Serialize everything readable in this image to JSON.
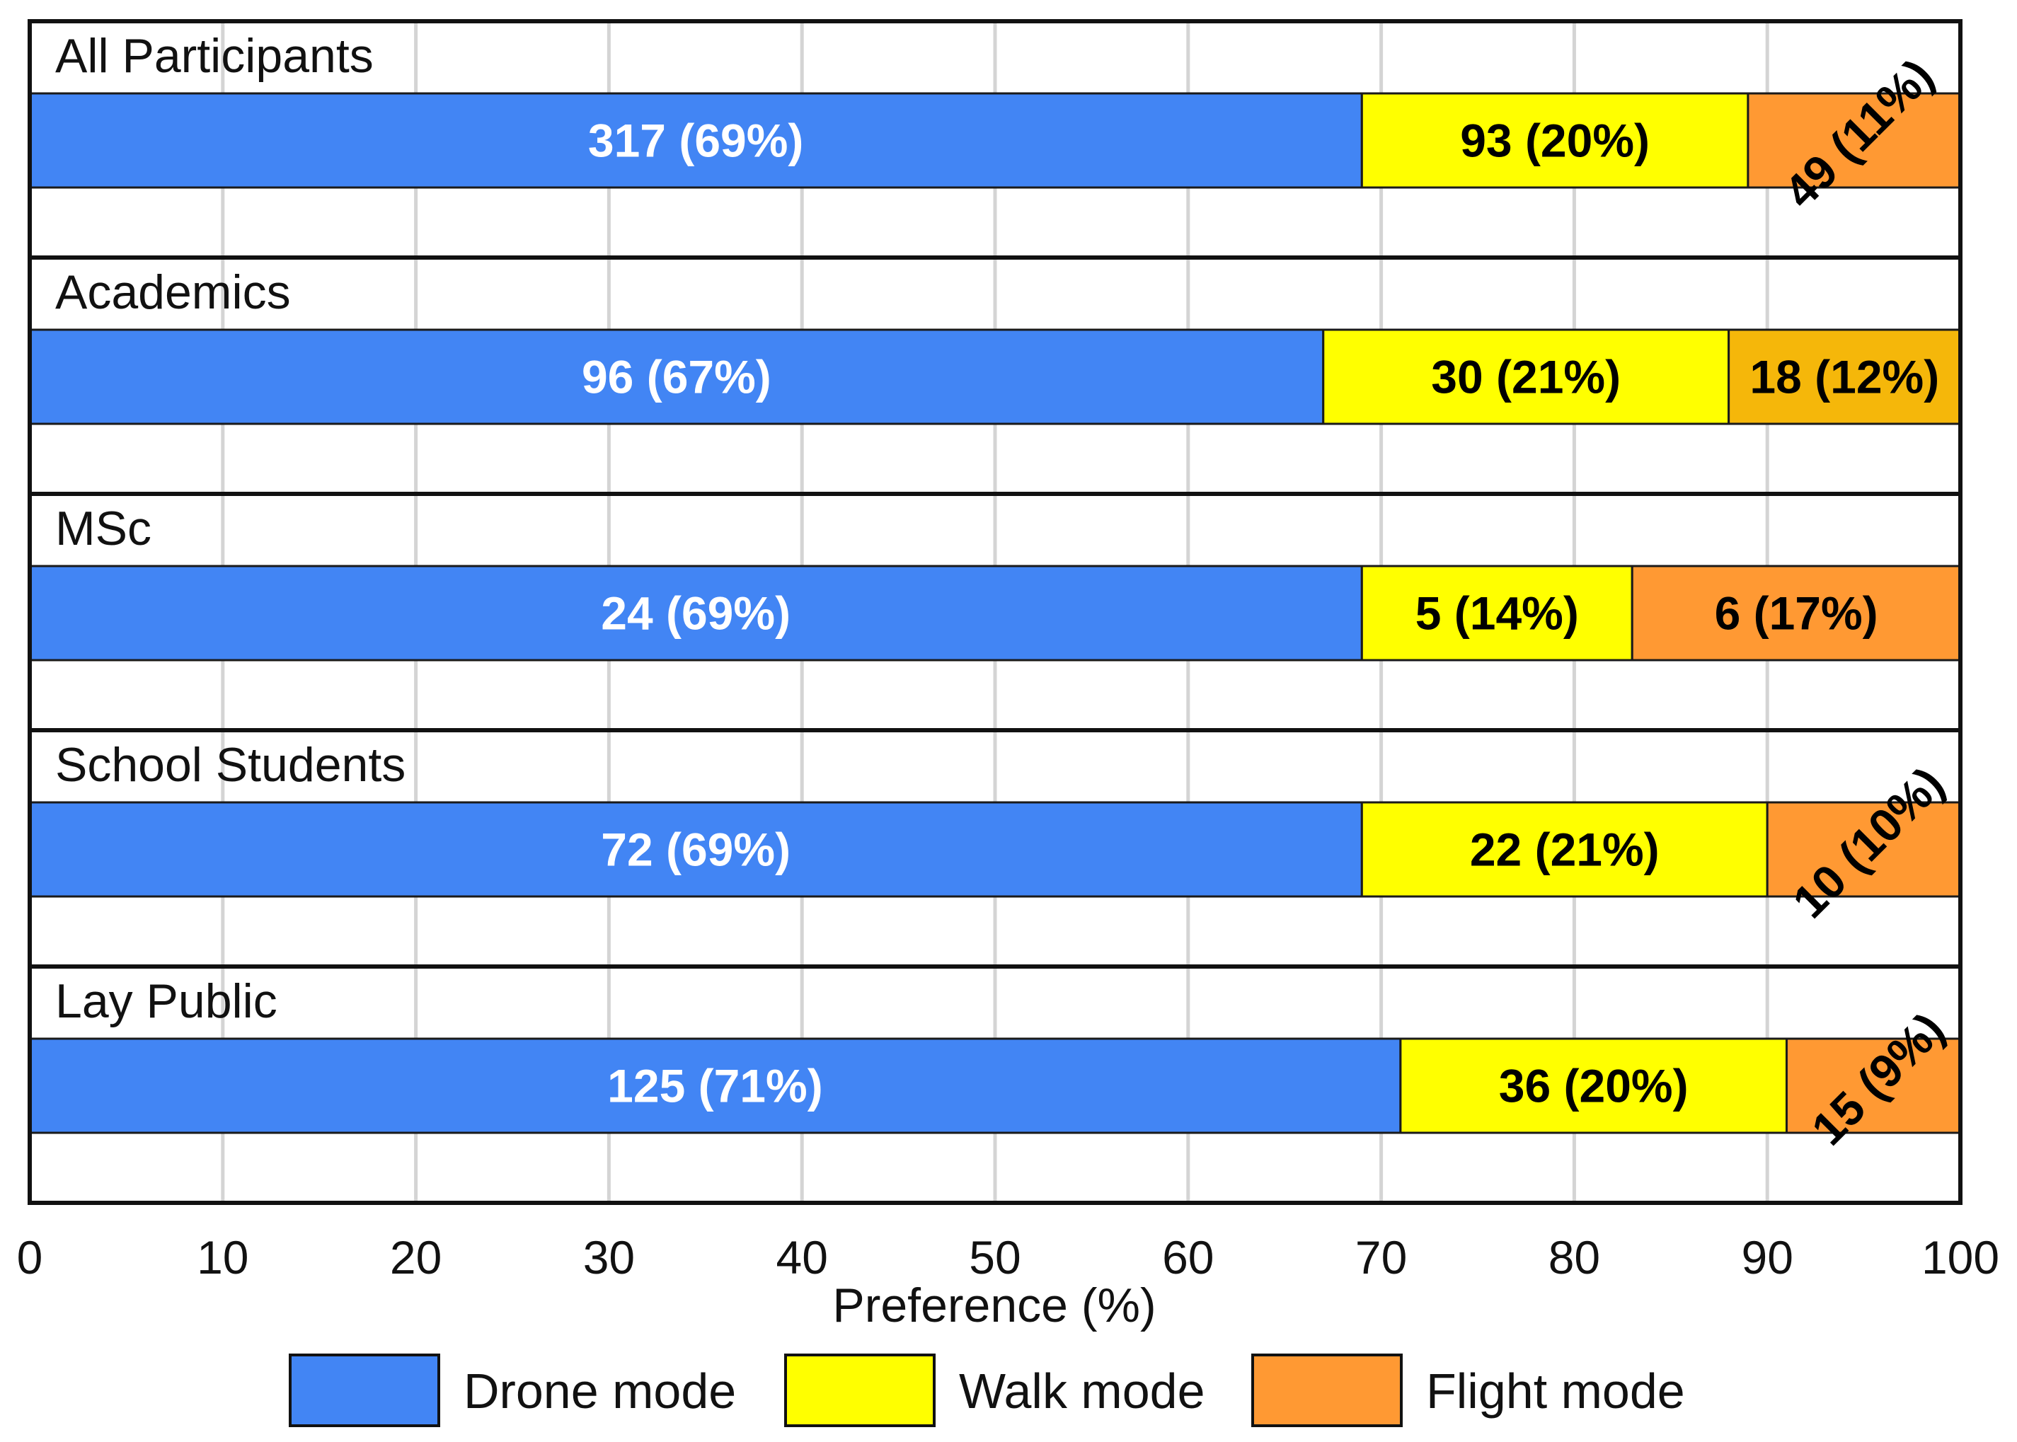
{
  "chart_data": {
    "type": "bar",
    "orientation": "horizontal",
    "stacked": true,
    "normalized_percent": true,
    "xlabel": "Preference (%)",
    "xlim": [
      0,
      100
    ],
    "xticks": [
      "0",
      "10",
      "20",
      "30",
      "40",
      "50",
      "60",
      "70",
      "80",
      "90",
      "100"
    ],
    "grid": true,
    "legend_position": "bottom",
    "series": [
      {
        "name": "Drone mode",
        "color": "#4285f4"
      },
      {
        "name": "Walk mode",
        "color": "#ffff00"
      },
      {
        "name": "Flight mode",
        "color": "#ff9933"
      }
    ],
    "categories": [
      {
        "name": "All Participants",
        "counts": [
          317,
          93,
          49
        ],
        "percents": [
          69,
          20,
          11
        ],
        "labels": [
          "317 (69%)",
          "93 (20%)",
          "49 (11%)"
        ],
        "flight_color": "#ff9933",
        "flight_label_rotated": true
      },
      {
        "name": "Academics",
        "counts": [
          96,
          30,
          18
        ],
        "percents": [
          67,
          21,
          12
        ],
        "labels": [
          "96 (67%)",
          "30 (21%)",
          "18 (12%)"
        ],
        "flight_color": "#f5b70a",
        "flight_label_rotated": false
      },
      {
        "name": "MSc",
        "counts": [
          24,
          5,
          6
        ],
        "percents": [
          69,
          14,
          17
        ],
        "labels": [
          "24 (69%)",
          "5 (14%)",
          "6 (17%)"
        ],
        "flight_color": "#ff9933",
        "flight_label_rotated": false
      },
      {
        "name": "School Students",
        "counts": [
          72,
          22,
          10
        ],
        "percents": [
          69,
          21,
          10
        ],
        "labels": [
          "72 (69%)",
          "22 (21%)",
          "10 (10%)"
        ],
        "flight_color": "#ff9933",
        "flight_label_rotated": true
      },
      {
        "name": "Lay Public",
        "counts": [
          125,
          36,
          15
        ],
        "percents": [
          71,
          20,
          9
        ],
        "labels": [
          "125 (71%)",
          "36 (20%)",
          "15 (9%)"
        ],
        "flight_color": "#ff9933",
        "flight_label_rotated": true
      }
    ]
  }
}
